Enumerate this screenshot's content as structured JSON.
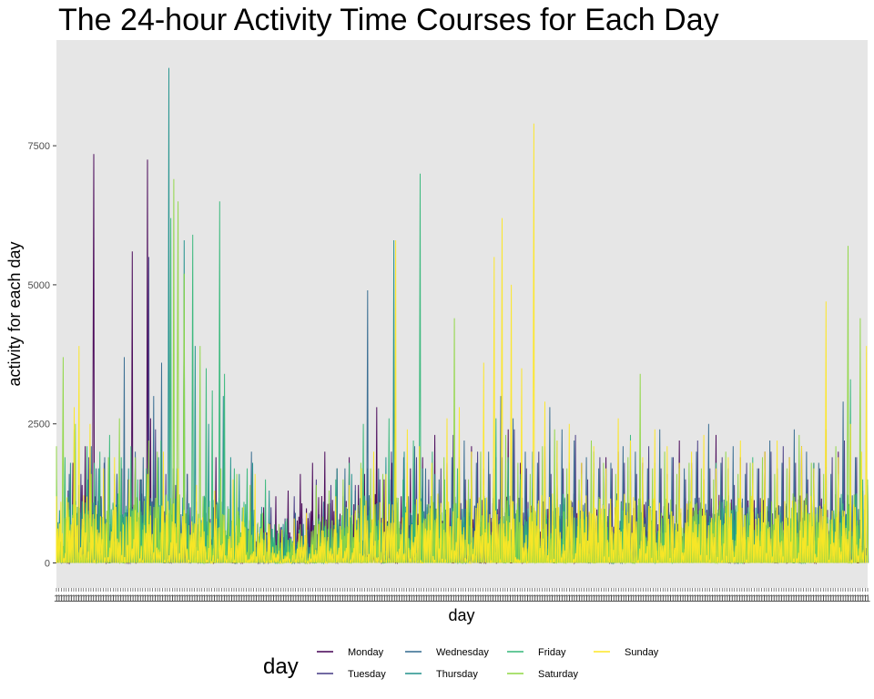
{
  "chart_data": {
    "type": "line",
    "title": "The 24-hour Activity Time Courses for Each Day",
    "xlabel": "day",
    "ylabel": "activity for each day",
    "ylim": [
      -450,
      9400
    ],
    "yticks": [
      0,
      2500,
      5000,
      7500
    ],
    "xtick_label": "1",
    "grid": false,
    "panel_background": "#E6E6E6",
    "legend": {
      "title": "day",
      "position": "bottom",
      "entries": [
        "Monday",
        "Tuesday",
        "Wednesday",
        "Thursday",
        "Friday",
        "Saturday",
        "Sunday"
      ]
    },
    "series": [
      {
        "name": "Monday",
        "color": "#440154",
        "x": [
          1,
          28,
          43,
          48,
          56,
          62,
          74,
          100,
          115,
          125,
          138,
          150,
          155,
          160,
          176,
          200,
          215,
          235,
          250,
          262,
          277,
          288,
          300,
          310,
          320,
          340,
          360,
          380,
          400,
          420,
          440,
          460,
          480,
          495,
          505,
          525,
          537,
          550,
          565,
          580,
          600,
          620,
          640,
          660,
          680,
          700,
          720,
          740,
          760,
          780,
          800,
          820,
          840,
          860,
          880,
          900,
          920,
          940,
          960,
          980,
          1000,
          1020,
          1040,
          1060,
          1080,
          1100,
          1120,
          1140,
          1160,
          1180,
          1200,
          1220,
          1240,
          1260,
          1280,
          1300,
          1320
        ],
        "y": [
          580,
          1800,
          1400,
          2100,
          1700,
          7350,
          1200,
          1600,
          900,
          5600,
          1500,
          7250,
          2600,
          1400,
          1000,
          1100,
          1600,
          400,
          800,
          1900,
          200,
          250,
          200,
          150,
          900,
          1000,
          1200,
          1300,
          1600,
          1800,
          2000,
          1700,
          1900,
          1400,
          1600,
          2800,
          1500,
          1800,
          1200,
          1700,
          1900,
          2300,
          1800,
          1600,
          2100,
          1700,
          1900,
          2400,
          1800,
          1500,
          2100,
          1700,
          1500,
          1800,
          1600,
          1900,
          2000,
          1700,
          1800,
          1700,
          1600,
          2200,
          1800,
          1500,
          2300,
          1700,
          1900,
          1600,
          2000,
          1700,
          1900,
          2100,
          1800,
          2400,
          2000,
          1700,
          1300
        ]
      },
      {
        "name": "Tuesday",
        "color": "#443983",
        "x": [
          1,
          20,
          41,
          54,
          64,
          79,
          108,
          118,
          130,
          140,
          152,
          163,
          180,
          196,
          220,
          242,
          258,
          280,
          301,
          330,
          352,
          375,
          390,
          403,
          415,
          426,
          450,
          470,
          490,
          510,
          530,
          549,
          570,
          590,
          610,
          630,
          650,
          670,
          690,
          710,
          730,
          750,
          770,
          790,
          810,
          830,
          850,
          870,
          890,
          910,
          930,
          950,
          970,
          990,
          1010,
          1030,
          1050,
          1070,
          1090,
          1110,
          1130,
          1150,
          1170,
          1190,
          1210,
          1230,
          1250,
          1270,
          1290,
          1310,
          1328
        ],
        "y": [
          700,
          1300,
          1600,
          1900,
          1100,
          1800,
          1700,
          1500,
          1900,
          1500,
          5500,
          2400,
          1600,
          1400,
          1000,
          800,
          1000,
          500,
          300,
          700,
          1000,
          800,
          1200,
          800,
          900,
          1500,
          1400,
          1200,
          1400,
          1700,
          1500,
          2000,
          1700,
          1900,
          1500,
          1700,
          2300,
          1500,
          2000,
          1600,
          1900,
          2400,
          1700,
          2000,
          1600,
          1700,
          2300,
          1500,
          1900,
          1700,
          1800,
          1600,
          2100,
          1700,
          1900,
          1500,
          2200,
          1700,
          1900,
          1400,
          1800,
          1700,
          2000,
          2100,
          1800,
          1500,
          1700,
          1900,
          2200,
          1900,
          1400
        ]
      },
      {
        "name": "Wednesday",
        "color": "#31688E",
        "x": [
          1,
          22,
          38,
          58,
          66,
          80,
          100,
          112,
          130,
          143,
          160,
          173,
          192,
          215,
          230,
          246,
          265,
          282,
          299,
          320,
          345,
          370,
          392,
          412,
          438,
          460,
          473,
          490,
          510,
          528,
          548,
          569,
          587,
          605,
          627,
          648,
          668,
          688,
          708,
          728,
          748,
          768,
          788,
          808,
          828,
          848,
          868,
          888,
          908,
          928,
          948,
          968,
          988,
          1008,
          1028,
          1048,
          1068,
          1088,
          1108,
          1128,
          1148,
          1168,
          1188,
          1208,
          1228,
          1248,
          1268,
          1288,
          1308,
          1328
        ],
        "y": [
          900,
          1600,
          1400,
          2100,
          1700,
          1900,
          1600,
          3700,
          2000,
          1900,
          3000,
          3600,
          1700,
          1600,
          1100,
          900,
          800,
          700,
          1000,
          2000,
          500,
          400,
          900,
          600,
          1100,
          1200,
          1700,
          1300,
          4900,
          1700,
          1500,
          1900,
          2100,
          1700,
          1500,
          1900,
          2200,
          1800,
          2000,
          3000,
          2600,
          2000,
          1800,
          2800,
          2400,
          2200,
          1900,
          1700,
          1800,
          2100,
          2000,
          1700,
          2400,
          1900,
          1700,
          2000,
          2500,
          1800,
          2100,
          1600,
          1700,
          2200,
          1800,
          2400,
          2000,
          1800,
          1600,
          2900,
          1900,
          1300
        ]
      },
      {
        "name": "Thursday",
        "color": "#21918C",
        "x": [
          1,
          24,
          52,
          70,
          96,
          119,
          139,
          168,
          185,
          198,
          210,
          228,
          250,
          274,
          286,
          300,
          322,
          349,
          372,
          405,
          432,
          460,
          484,
          500,
          520,
          540,
          553,
          570,
          600,
          620,
          640,
          660,
          680,
          700,
          720,
          740,
          760,
          780,
          800,
          820,
          840,
          860,
          880,
          900,
          920,
          940,
          960,
          980,
          1000,
          1020,
          1040,
          1060,
          1080,
          1100,
          1120,
          1140,
          1160,
          1180,
          1200,
          1220,
          1240,
          1260,
          1280,
          1300,
          1320
        ],
        "y": [
          1300,
          1800,
          1500,
          1700,
          1600,
          1700,
          1500,
          1900,
          8900,
          1700,
          5800,
          3900,
          2500,
          3000,
          1900,
          1600,
          1800,
          1300,
          700,
          700,
          700,
          1700,
          1600,
          1700,
          1500,
          1900,
          5800,
          2000,
          1700,
          1600,
          1500,
          1900,
          1700,
          1400,
          1600,
          1800,
          1600,
          2000,
          1500,
          1700,
          1600,
          1400,
          1800,
          1600,
          1300,
          1500,
          1700,
          1600,
          1500,
          1400,
          1700,
          1300,
          1500,
          1600,
          1400,
          1700,
          1500,
          1400,
          1600,
          1300,
          1500,
          1700,
          1400,
          1600,
          1200
        ]
      },
      {
        "name": "Friday",
        "color": "#35B779",
        "x": [
          1,
          15,
          30,
          51,
          63,
          72,
          88,
          107,
          123,
          134,
          148,
          172,
          188,
          210,
          224,
          246,
          256,
          268,
          276,
          292,
          313,
          343,
          378,
          398,
          430,
          458,
          480,
          503,
          520,
          545,
          568,
          585,
          596,
          616,
          636,
          657,
          680,
          700,
          720,
          740,
          760,
          780,
          800,
          820,
          840,
          860,
          880,
          900,
          920,
          940,
          960,
          980,
          1000,
          1020,
          1040,
          1060,
          1080,
          1100,
          1120,
          1140,
          1160,
          1180,
          1200,
          1220,
          1240,
          1260,
          1280,
          1300,
          1320
        ],
        "y": [
          1500,
          1900,
          2400,
          2100,
          1800,
          2000,
          2300,
          1900,
          2100,
          1500,
          1700,
          2200,
          6200,
          5200,
          5900,
          3500,
          3100,
          6500,
          3400,
          1700,
          1700,
          1500,
          800,
          600,
          800,
          1500,
          1800,
          2500,
          1700,
          2600,
          1500,
          2200,
          7000,
          2000,
          1500,
          1700,
          1900,
          1400,
          2600,
          1900,
          1500,
          1700,
          1400,
          2200,
          1800,
          1600,
          2000,
          1500,
          1700,
          2300,
          1600,
          1800,
          1500,
          1700,
          1600,
          1400,
          1800,
          1700,
          1500,
          1900,
          1400,
          1700,
          1500,
          1600,
          1800,
          1400,
          1600,
          3300,
          1500
        ]
      },
      {
        "name": "Saturday",
        "color": "#8FD744",
        "x": [
          1,
          12,
          32,
          58,
          86,
          104,
          130,
          152,
          166,
          193,
          200,
          210,
          236,
          270,
          296,
          318,
          338,
          365,
          400,
          426,
          447,
          470,
          499,
          515,
          535,
          555,
          575,
          595,
          615,
          635,
          652,
          675,
          695,
          716,
          736,
          756,
          776,
          796,
          816,
          836,
          856,
          876,
          896,
          916,
          936,
          956,
          976,
          996,
          1016,
          1036,
          1056,
          1076,
          1096,
          1116,
          1136,
          1156,
          1176,
          1196,
          1216,
          1236,
          1256,
          1276,
          1296,
          1316,
          1328
        ],
        "y": [
          2100,
          3700,
          2500,
          1600,
          1900,
          2600,
          1900,
          2200,
          2000,
          6900,
          6500,
          5200,
          3900,
          1700,
          1600,
          1400,
          900,
          700,
          700,
          1400,
          1300,
          1500,
          1800,
          1700,
          1600,
          2400,
          1800,
          2100,
          1700,
          1900,
          4400,
          1500,
          2000,
          1700,
          2300,
          1800,
          1600,
          2100,
          2400,
          1700,
          1500,
          2200,
          1800,
          1600,
          1900,
          3400,
          1700,
          2000,
          1600,
          1800,
          1700,
          1500,
          2000,
          1600,
          1800,
          1900,
          1600,
          1700,
          2300,
          1800,
          1600,
          2100,
          5700,
          4400,
          1500
        ]
      },
      {
        "name": "Sunday",
        "color": "#FDE725",
        "x": [
          1,
          30,
          38,
          56,
          78,
          96,
          120,
          150,
          176,
          200,
          230,
          260,
          290,
          326,
          350,
          370,
          390,
          410,
          430,
          458,
          480,
          500,
          520,
          540,
          556,
          575,
          595,
          615,
          640,
          660,
          680,
          700,
          717,
          730,
          745,
          762,
          782,
          800,
          820,
          840,
          860,
          880,
          900,
          920,
          940,
          960,
          980,
          1000,
          1020,
          1040,
          1060,
          1080,
          1100,
          1120,
          1140,
          1160,
          1180,
          1200,
          1220,
          1240,
          1260,
          1280,
          1300,
          1318,
          1326
        ],
        "y": [
          1200,
          2800,
          3900,
          2500,
          1700,
          1900,
          1500,
          1600,
          2000,
          1700,
          1400,
          1300,
          1500,
          1600,
          700,
          600,
          800,
          900,
          700,
          1200,
          1400,
          1700,
          2000,
          1600,
          5800,
          2400,
          2100,
          1800,
          2600,
          2800,
          2000,
          3600,
          5500,
          6200,
          5000,
          3500,
          7900,
          2900,
          2200,
          2500,
          1800,
          2100,
          1700,
          2600,
          2200,
          1900,
          2400,
          2100,
          1800,
          2000,
          2300,
          1700,
          1900,
          2200,
          1800,
          2000,
          2200,
          1900,
          2100,
          1700,
          4700,
          1900,
          2500,
          2000,
          3900
        ]
      }
    ]
  }
}
